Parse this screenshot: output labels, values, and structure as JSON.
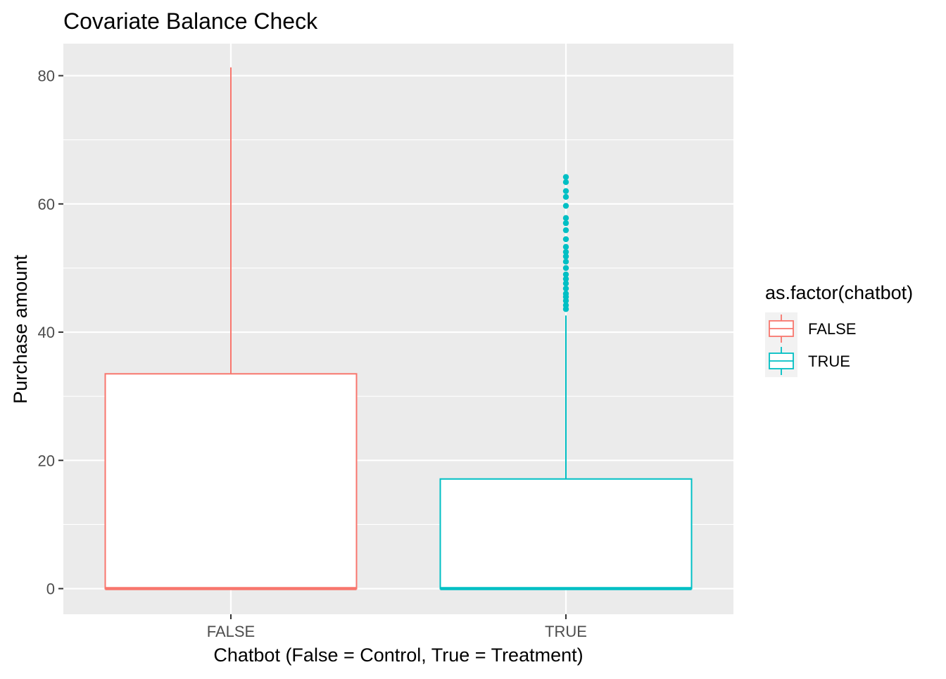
{
  "chart_data": {
    "type": "boxplot",
    "title": "Covariate Balance Check",
    "xlabel": "Chatbot (False = Control, True = Treatment)",
    "ylabel": "Purchase amount",
    "ylim": [
      -4,
      85
    ],
    "yticks": [
      0,
      20,
      40,
      60,
      80
    ],
    "grid": true,
    "legend": {
      "title": "as.factor(chatbot)",
      "placement": "right",
      "entries": [
        "FALSE",
        "TRUE"
      ]
    },
    "categories": [
      "FALSE",
      "TRUE"
    ],
    "series": [
      {
        "name": "FALSE",
        "color": "#F8766D",
        "min": 0,
        "q1": 0,
        "median": 0,
        "q3": 33.5,
        "max": 81.3,
        "outliers": []
      },
      {
        "name": "TRUE",
        "color": "#00BFC4",
        "min": 0,
        "q1": 0,
        "median": 0,
        "q3": 17.1,
        "max": 42.6,
        "outliers": [
          43.6,
          44.2,
          44.9,
          45.5,
          46.0,
          46.8,
          47.6,
          48.3,
          49.0,
          50.0,
          51.0,
          51.8,
          52.5,
          53.3,
          54.5,
          55.9,
          57.0,
          57.8,
          59.7,
          61.1,
          62.0,
          63.4,
          64.2
        ]
      }
    ]
  }
}
